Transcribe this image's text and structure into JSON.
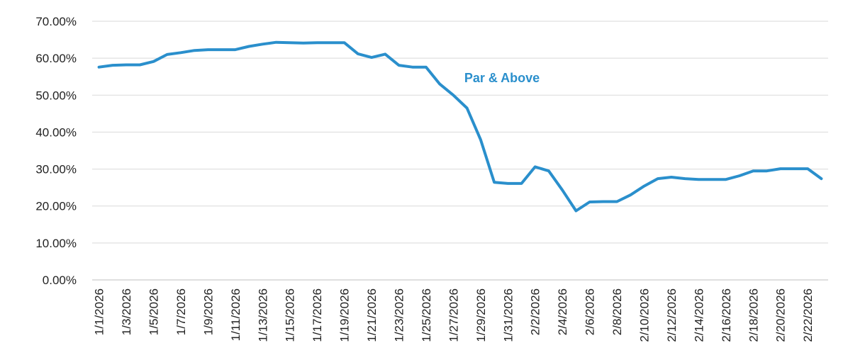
{
  "chart_data": {
    "type": "line",
    "title": "",
    "xlabel": "",
    "ylabel": "",
    "ylim": [
      0,
      0.7
    ],
    "y_ticks": [
      0,
      0.1,
      0.2,
      0.3,
      0.4,
      0.5,
      0.6,
      0.7
    ],
    "y_tick_format": "percent_2dp",
    "grid": "horizontal",
    "legend": "none",
    "x_tick_every": 2,
    "categories": [
      "1/1/2026",
      "1/2/2026",
      "1/3/2026",
      "1/4/2026",
      "1/5/2026",
      "1/6/2026",
      "1/7/2026",
      "1/8/2026",
      "1/9/2026",
      "1/10/2026",
      "1/11/2026",
      "1/12/2026",
      "1/13/2026",
      "1/14/2026",
      "1/15/2026",
      "1/16/2026",
      "1/17/2026",
      "1/18/2026",
      "1/19/2026",
      "1/20/2026",
      "1/21/2026",
      "1/22/2026",
      "1/23/2026",
      "1/24/2026",
      "1/25/2026",
      "1/26/2026",
      "1/27/2026",
      "1/28/2026",
      "1/29/2026",
      "1/30/2026",
      "1/31/2026",
      "2/1/2026",
      "2/2/2026",
      "2/3/2026",
      "2/4/2026",
      "2/5/2026",
      "2/6/2026",
      "2/7/2026",
      "2/8/2026",
      "2/9/2026",
      "2/10/2026",
      "2/11/2026",
      "2/12/2026",
      "2/13/2026",
      "2/14/2026",
      "2/15/2026",
      "2/16/2026",
      "2/17/2026",
      "2/18/2026",
      "2/19/2026",
      "2/20/2026",
      "2/21/2026",
      "2/22/2026",
      "2/23/2026"
    ],
    "series": [
      {
        "name": "Par & Above",
        "color": "#2a8fcc",
        "values": [
          0.576,
          0.581,
          0.582,
          0.582,
          0.591,
          0.61,
          0.615,
          0.621,
          0.623,
          0.623,
          0.623,
          0.632,
          0.638,
          0.643,
          0.642,
          0.641,
          0.642,
          0.642,
          0.642,
          0.612,
          0.602,
          0.611,
          0.581,
          0.576,
          0.576,
          0.53,
          0.5,
          0.465,
          0.38,
          0.264,
          0.261,
          0.261,
          0.306,
          0.295,
          0.243,
          0.187,
          0.211,
          0.212,
          0.212,
          0.23,
          0.254,
          0.274,
          0.278,
          0.274,
          0.272,
          0.272,
          0.272,
          0.282,
          0.295,
          0.295,
          0.301,
          0.301,
          0.301,
          0.274
        ]
      }
    ]
  }
}
